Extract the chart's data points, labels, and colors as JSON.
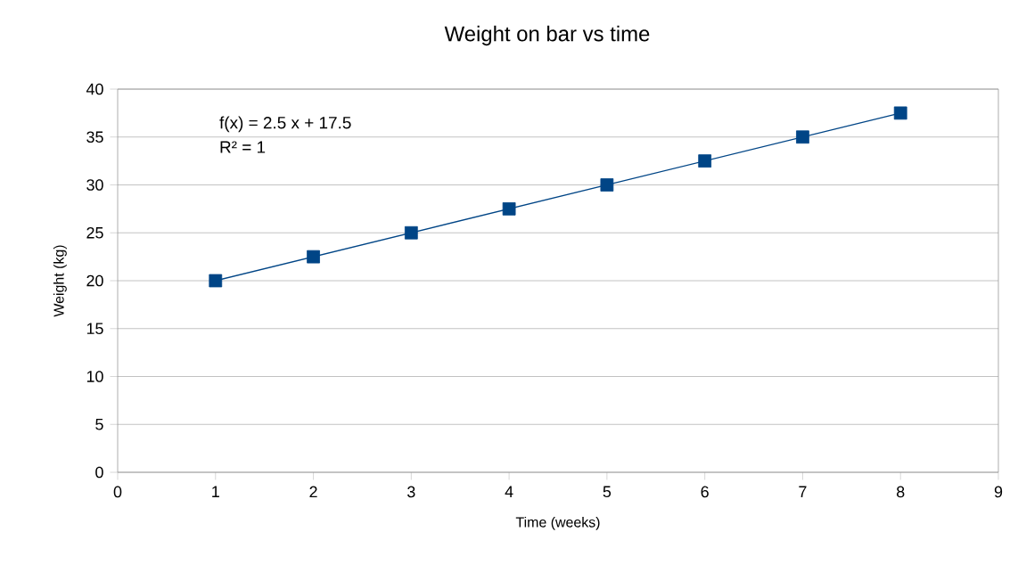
{
  "chart_data": {
    "type": "scatter",
    "title": "Weight on bar vs time",
    "xlabel": "Time (weeks)",
    "ylabel": "Weight (kg)",
    "x": [
      1,
      2,
      3,
      4,
      5,
      6,
      7,
      8
    ],
    "series": [
      {
        "color": "#004586",
        "marker": "square",
        "values": [
          20,
          22.5,
          25,
          27.5,
          30,
          32.5,
          35,
          37.5
        ]
      },
      {
        "type": "line",
        "color": "#004586",
        "x": [
          1,
          8
        ],
        "values": [
          20,
          37.5
        ]
      }
    ],
    "annotations": [
      "f(x) = 2.5 x + 17.5",
      "R² = 1"
    ],
    "grid": "y",
    "xlim": [
      0,
      9
    ],
    "xticks": [
      0,
      1,
      2,
      3,
      4,
      5,
      6,
      7,
      8,
      9
    ],
    "ylim": [
      0,
      40
    ],
    "yticks": [
      0,
      5,
      10,
      15,
      20,
      25,
      30,
      35,
      40
    ]
  }
}
